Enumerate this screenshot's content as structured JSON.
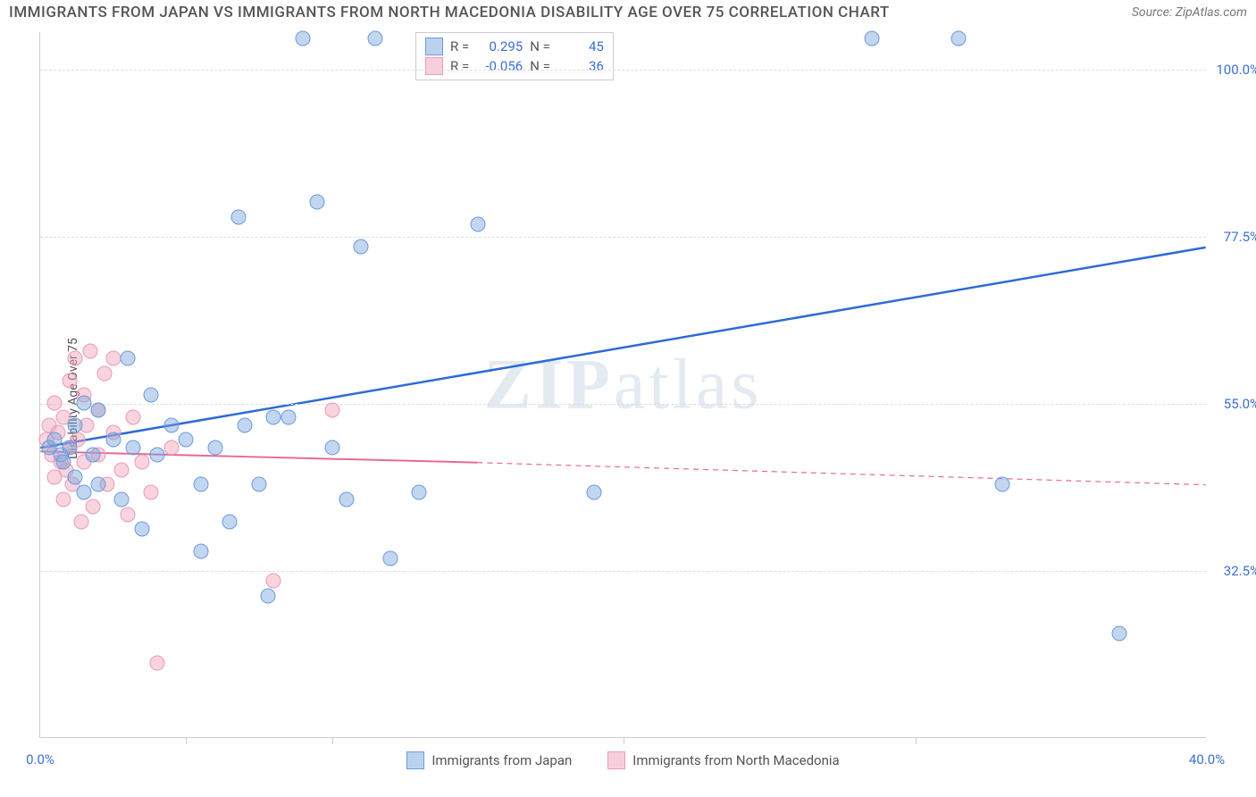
{
  "title": "IMMIGRANTS FROM JAPAN VS IMMIGRANTS FROM NORTH MACEDONIA DISABILITY AGE OVER 75 CORRELATION CHART",
  "source": "Source: ZipAtlas.com",
  "watermark": {
    "zip": "ZIP",
    "atlas": "atlas"
  },
  "ylabel": "Disability Age Over 75",
  "chart": {
    "type": "scatter",
    "xlim": [
      0,
      40
    ],
    "ylim": [
      10,
      105
    ],
    "yticks": [
      {
        "v": 32.5,
        "label": "32.5%"
      },
      {
        "v": 55.0,
        "label": "55.0%"
      },
      {
        "v": 77.5,
        "label": "77.5%"
      },
      {
        "v": 100.0,
        "label": "100.0%"
      }
    ],
    "xticks_major": [
      0,
      40
    ],
    "xtick_labels": {
      "left": "0.0%",
      "right": "40.0%"
    },
    "xticks_minor": [
      5,
      10,
      20,
      30
    ],
    "marker_size": 17,
    "background_color": "#ffffff",
    "grid_color": "#dddddd"
  },
  "series": {
    "japan": {
      "label": "Immigrants from Japan",
      "color_fill": "rgba(120,165,220,0.45)",
      "color_stroke": "#6a9be0",
      "trend_color": "#2e6bd6",
      "trend_width": 2.5,
      "R": "0.295",
      "N": "45",
      "trend": {
        "x1": 0,
        "y1": 49,
        "x2": 40,
        "y2": 76
      },
      "points": [
        {
          "x": 0.3,
          "y": 49
        },
        {
          "x": 0.5,
          "y": 50
        },
        {
          "x": 0.7,
          "y": 48
        },
        {
          "x": 0.8,
          "y": 47
        },
        {
          "x": 1.0,
          "y": 49
        },
        {
          "x": 1.2,
          "y": 52
        },
        {
          "x": 1.2,
          "y": 45
        },
        {
          "x": 1.5,
          "y": 43
        },
        {
          "x": 1.5,
          "y": 55
        },
        {
          "x": 1.8,
          "y": 48
        },
        {
          "x": 2.0,
          "y": 54
        },
        {
          "x": 2.0,
          "y": 44
        },
        {
          "x": 2.5,
          "y": 50
        },
        {
          "x": 2.8,
          "y": 42
        },
        {
          "x": 3.0,
          "y": 61
        },
        {
          "x": 3.2,
          "y": 49
        },
        {
          "x": 3.5,
          "y": 38
        },
        {
          "x": 3.8,
          "y": 56
        },
        {
          "x": 4.0,
          "y": 48
        },
        {
          "x": 4.5,
          "y": 52
        },
        {
          "x": 5.0,
          "y": 50
        },
        {
          "x": 5.5,
          "y": 44
        },
        {
          "x": 5.5,
          "y": 35
        },
        {
          "x": 6.0,
          "y": 49
        },
        {
          "x": 6.5,
          "y": 39
        },
        {
          "x": 6.8,
          "y": 80
        },
        {
          "x": 7.0,
          "y": 52
        },
        {
          "x": 7.5,
          "y": 44
        },
        {
          "x": 7.8,
          "y": 29
        },
        {
          "x": 8.0,
          "y": 53
        },
        {
          "x": 8.5,
          "y": 53
        },
        {
          "x": 9.0,
          "y": 104
        },
        {
          "x": 9.5,
          "y": 82
        },
        {
          "x": 10.0,
          "y": 49
        },
        {
          "x": 10.5,
          "y": 42
        },
        {
          "x": 11.0,
          "y": 76
        },
        {
          "x": 11.5,
          "y": 104
        },
        {
          "x": 12.0,
          "y": 34
        },
        {
          "x": 13.0,
          "y": 43
        },
        {
          "x": 15.0,
          "y": 79
        },
        {
          "x": 28.5,
          "y": 104
        },
        {
          "x": 31.5,
          "y": 104
        },
        {
          "x": 33.0,
          "y": 44
        },
        {
          "x": 37.0,
          "y": 24
        },
        {
          "x": 19.0,
          "y": 43
        }
      ]
    },
    "macedonia": {
      "label": "Immigrants from North Macedonia",
      "color_fill": "rgba(240,160,185,0.45)",
      "color_stroke": "#ec9ab5",
      "trend_color": "#e76a94",
      "trend_width": 2,
      "R": "-0.056",
      "N": "36",
      "trend_solid": {
        "x1": 0,
        "y1": 48.5,
        "x2": 15,
        "y2": 47
      },
      "trend_dashed": {
        "x1": 15,
        "y1": 47,
        "x2": 40,
        "y2": 44
      },
      "points": [
        {
          "x": 0.2,
          "y": 50
        },
        {
          "x": 0.3,
          "y": 52
        },
        {
          "x": 0.4,
          "y": 48
        },
        {
          "x": 0.5,
          "y": 55
        },
        {
          "x": 0.5,
          "y": 45
        },
        {
          "x": 0.6,
          "y": 51
        },
        {
          "x": 0.7,
          "y": 47
        },
        {
          "x": 0.8,
          "y": 53
        },
        {
          "x": 0.8,
          "y": 42
        },
        {
          "x": 1.0,
          "y": 49
        },
        {
          "x": 1.0,
          "y": 58
        },
        {
          "x": 1.1,
          "y": 44
        },
        {
          "x": 1.2,
          "y": 61
        },
        {
          "x": 1.3,
          "y": 50
        },
        {
          "x": 1.4,
          "y": 39
        },
        {
          "x": 1.5,
          "y": 56
        },
        {
          "x": 1.5,
          "y": 47
        },
        {
          "x": 1.7,
          "y": 62
        },
        {
          "x": 1.8,
          "y": 41
        },
        {
          "x": 2.0,
          "y": 54
        },
        {
          "x": 2.0,
          "y": 48
        },
        {
          "x": 2.2,
          "y": 59
        },
        {
          "x": 2.3,
          "y": 44
        },
        {
          "x": 2.5,
          "y": 51
        },
        {
          "x": 2.5,
          "y": 61
        },
        {
          "x": 2.8,
          "y": 46
        },
        {
          "x": 3.0,
          "y": 40
        },
        {
          "x": 3.2,
          "y": 53
        },
        {
          "x": 3.5,
          "y": 47
        },
        {
          "x": 3.8,
          "y": 43
        },
        {
          "x": 4.0,
          "y": 20
        },
        {
          "x": 4.5,
          "y": 49
        },
        {
          "x": 8.0,
          "y": 31
        },
        {
          "x": 10.0,
          "y": 54
        },
        {
          "x": 1.6,
          "y": 52
        },
        {
          "x": 0.9,
          "y": 46
        }
      ]
    }
  },
  "legend_top_labels": {
    "R": "R =",
    "N": "N ="
  }
}
